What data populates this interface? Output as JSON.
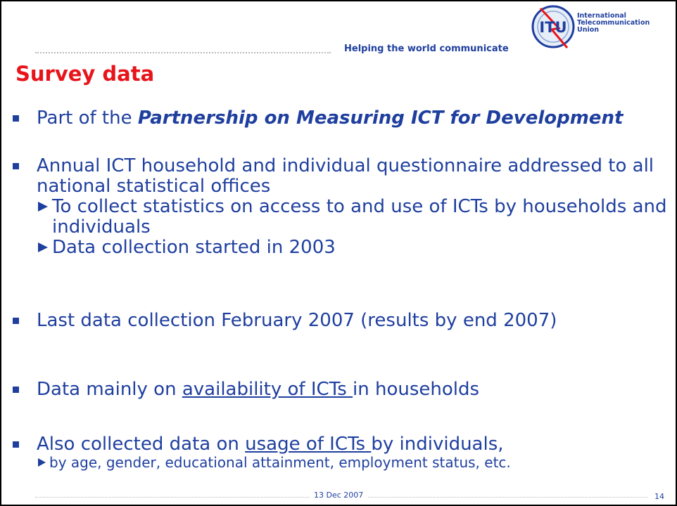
{
  "header": {
    "tagline": "Helping the world communicate",
    "logo": {
      "mark": "ITU",
      "name": [
        "International",
        "Telecommunication",
        "Union"
      ]
    }
  },
  "title": "Survey data",
  "bullets": [
    {
      "parts": [
        {
          "text": "Part of the "
        },
        {
          "text": "Partnership on Measuring ICT for Development",
          "style": "bold-italic"
        }
      ]
    },
    {
      "parts": [
        {
          "text": "Annual ICT household and individual questionnaire addressed to all national statistical offices"
        }
      ],
      "subs": [
        {
          "text": "To collect statistics on access to and use of ICTs by households and individuals"
        },
        {
          "text": "Data collection started in 2003"
        }
      ]
    },
    {
      "parts": [
        {
          "text": "Last data collection February 2007 (results by end 2007)"
        }
      ]
    },
    {
      "parts": [
        {
          "text": "Data mainly on "
        },
        {
          "text": "availability of ICTs ",
          "style": "underline"
        },
        {
          "text": "in households"
        }
      ]
    },
    {
      "parts": [
        {
          "text": "Also collected data on "
        },
        {
          "text": "usage of ICTs ",
          "style": "underline"
        },
        {
          "text": "by individuals,"
        }
      ],
      "subs": [
        {
          "text": "by age, gender, educational attainment, employment status, etc.",
          "size": "small"
        }
      ]
    }
  ],
  "footer": {
    "date": "13 Dec  2007",
    "page": "14"
  }
}
